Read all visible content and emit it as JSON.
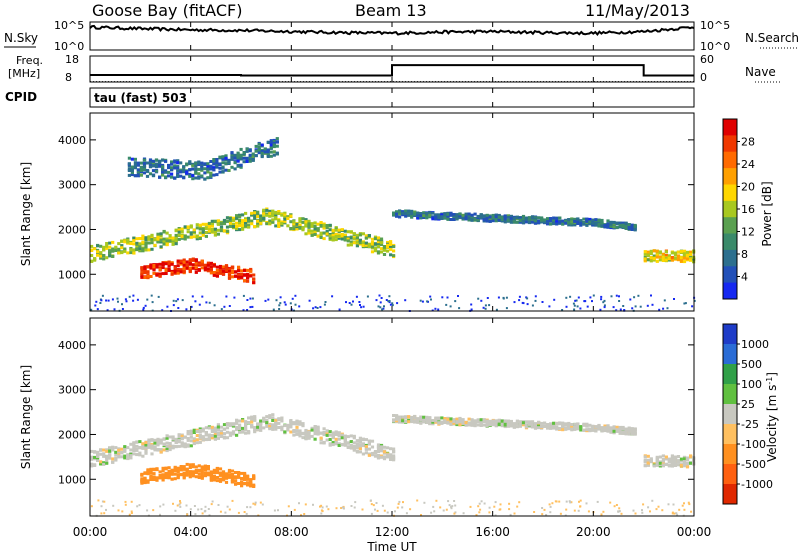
{
  "header": {
    "station": "Goose Bay (fitACF)",
    "beam": "Beam 13",
    "date": "11/May/2013"
  },
  "top_panels": {
    "nsky_label": "N.Sky",
    "nsky_ticks": [
      "10^5",
      "10^0"
    ],
    "nsearch_label": "N.Search",
    "nsearch_ticks": [
      "10^5",
      "10^0"
    ],
    "freq_label": "Freq.",
    "freq_unit": "[MHz]",
    "freq_ticks": [
      "18",
      "8"
    ],
    "nave_label": "Nave",
    "nave_ticks": [
      "60",
      "0"
    ],
    "cpid_label": "CPID",
    "cpid_value": "tau (fast) 503"
  },
  "chart_data": [
    {
      "type": "line",
      "name": "noise",
      "series": [
        {
          "name": "N.Sky",
          "style": "solid",
          "x_hours": [
            0,
            2,
            4,
            6,
            8,
            10,
            12,
            14,
            16,
            18,
            20,
            22,
            24
          ],
          "values_log10": [
            4.1,
            3.8,
            3.6,
            3.5,
            3.3,
            3.1,
            3.0,
            3.2,
            3.3,
            3.1,
            3.0,
            3.3,
            4.1
          ]
        },
        {
          "name": "N.Search",
          "style": "dotted"
        }
      ],
      "ylim": [
        0,
        5
      ],
      "yticks": [
        "10^0",
        "10^5"
      ]
    },
    {
      "type": "line",
      "name": "frequency-and-nave",
      "series": [
        {
          "name": "Freq.",
          "style": "solid",
          "x_hours": [
            0,
            6,
            12,
            22,
            24
          ],
          "values": [
            10.7,
            10.5,
            14.5,
            10.5,
            10.5
          ]
        },
        {
          "name": "Nave",
          "style": "dotted",
          "x_hours": [
            0,
            24
          ],
          "values": [
            1,
            1
          ]
        }
      ],
      "ylim_freq": [
        8,
        18
      ],
      "ylim_nave": [
        0,
        60
      ]
    },
    {
      "type": "heatmap",
      "name": "power",
      "ylabel": "Slant Range [km]",
      "yticks": [
        1000,
        2000,
        3000,
        4000
      ],
      "ylim": [
        180,
        4600
      ],
      "xlim": [
        0,
        24
      ],
      "colorbar": {
        "label": "Power [dB]",
        "ticks": [
          "4",
          "8",
          "12",
          "16",
          "20",
          "24",
          "28"
        ],
        "colors": [
          "#1528f0",
          "#2250b8",
          "#2c6f8e",
          "#3a8a6a",
          "#5aa050",
          "#a8c820",
          "#ffd700",
          "#ffa000",
          "#ff6a00",
          "#f03800",
          "#e00000"
        ]
      },
      "echo_regions": [
        {
          "desc": "main band",
          "x_hours": [
            0,
            3,
            7,
            12
          ],
          "range_km": [
            1450,
            1800,
            2300,
            1550
          ],
          "width_km": 350,
          "power_db": 14
        },
        {
          "desc": "near range patch",
          "x_hours": [
            2,
            4,
            6.5
          ],
          "range_km": [
            1050,
            1200,
            950
          ],
          "width_km": 300,
          "power_db": 28
        },
        {
          "desc": "afternoon band",
          "x_hours": [
            12,
            16,
            20,
            21.7
          ],
          "range_km": [
            2350,
            2250,
            2150,
            2050
          ],
          "width_km": 150,
          "power_db": 6
        },
        {
          "desc": "evening patch",
          "x_hours": [
            22,
            24
          ],
          "range_km": [
            1400,
            1400
          ],
          "width_km": 250,
          "power_db": 18
        },
        {
          "desc": "high range scatter",
          "x_hours": [
            1.5,
            4.5,
            7.5
          ],
          "range_km": [
            3400,
            3300,
            3900
          ],
          "width_km": 400,
          "power_db": 6
        }
      ]
    },
    {
      "type": "heatmap",
      "name": "velocity",
      "ylabel": "Slant Range [km]",
      "yticks": [
        1000,
        2000,
        3000,
        4000
      ],
      "ylim": [
        180,
        4600
      ],
      "xlim": [
        0,
        24
      ],
      "colorbar": {
        "label": "Velocity [m s^-1]",
        "ticks": [
          "1000",
          "500",
          "100",
          "25",
          "-25",
          "-100",
          "-500",
          "-1000"
        ],
        "colors": [
          "#1e3cc8",
          "#2a6cd6",
          "#30a048",
          "#60c040",
          "#c8c8c0",
          "#ffc060",
          "#ff9020",
          "#ff6010",
          "#e02800"
        ]
      },
      "echo_regions": [
        {
          "desc": "main band",
          "x_hours": [
            0,
            3,
            7,
            12
          ],
          "range_km": [
            1450,
            1800,
            2300,
            1550
          ],
          "width_km": 350,
          "velocity_ms": 0
        },
        {
          "desc": "near range patch",
          "x_hours": [
            2,
            4,
            6.5
          ],
          "range_km": [
            1050,
            1200,
            950
          ],
          "width_km": 300,
          "velocity_ms": -300
        },
        {
          "desc": "afternoon band",
          "x_hours": [
            12,
            16,
            20,
            21.7
          ],
          "range_km": [
            2350,
            2250,
            2150,
            2050
          ],
          "width_km": 150,
          "velocity_ms": 0
        },
        {
          "desc": "evening patch",
          "x_hours": [
            22,
            24
          ],
          "range_km": [
            1400,
            1400
          ],
          "width_km": 250,
          "velocity_ms": 0
        }
      ]
    }
  ],
  "x_axis": {
    "label": "Time UT",
    "ticks": [
      "00:00",
      "04:00",
      "08:00",
      "12:00",
      "16:00",
      "20:00",
      "00:00"
    ],
    "tick_hours": [
      0,
      4,
      8,
      12,
      16,
      20,
      24
    ]
  },
  "colors": {
    "axis": "#000000",
    "background": "#ffffff"
  }
}
